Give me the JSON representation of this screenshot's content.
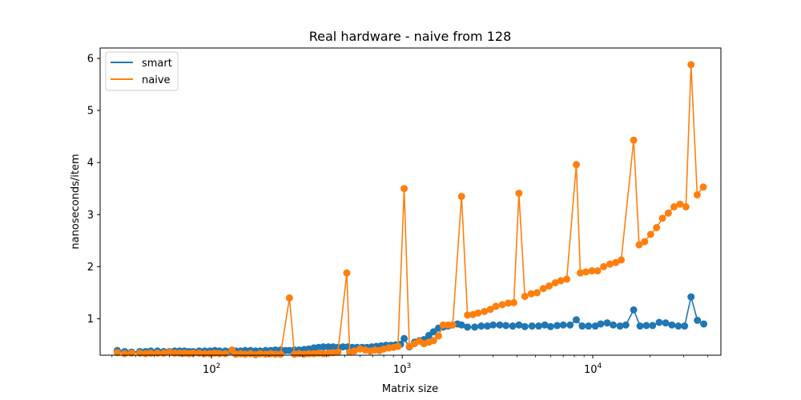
{
  "chart_data": {
    "type": "line",
    "title": "Real hardware - naive from 128",
    "xlabel": "Matrix size",
    "ylabel": "nanoseconds/item",
    "xscale": "log",
    "xlim": [
      26,
      47000
    ],
    "ylim": [
      0.3,
      6.2
    ],
    "xticks": [
      100,
      1000,
      10000
    ],
    "xtick_labels": [
      {
        "base": "10",
        "exp": "2"
      },
      {
        "base": "10",
        "exp": "3"
      },
      {
        "base": "10",
        "exp": "4"
      }
    ],
    "yticks": [
      1,
      2,
      3,
      4,
      5,
      6
    ],
    "ytick_labels": [
      "1",
      "2",
      "3",
      "4",
      "5",
      "6"
    ],
    "legend_position": "top-left",
    "grid": false,
    "series": [
      {
        "name": "smart",
        "color": "#1f77b4",
        "x": [
          32,
          35,
          38,
          42,
          45,
          48,
          52,
          56,
          60,
          64,
          68,
          72,
          76,
          80,
          86,
          92,
          98,
          104,
          110,
          118,
          126,
          134,
          142,
          150,
          160,
          170,
          180,
          192,
          204,
          216,
          230,
          244,
          256,
          272,
          288,
          306,
          324,
          344,
          364,
          386,
          410,
          434,
          460,
          488,
          518,
          548,
          580,
          616,
          652,
          692,
          732,
          776,
          822,
          872,
          924,
          980,
          1024,
          1090,
          1160,
          1230,
          1300,
          1380,
          1460,
          1550,
          1640,
          1740,
          1840,
          1950,
          2048,
          2200,
          2400,
          2600,
          2800,
          3000,
          3250,
          3500,
          3800,
          4096,
          4400,
          4800,
          5200,
          5600,
          6000,
          6500,
          7000,
          7600,
          8192,
          8800,
          9500,
          10300,
          11000,
          11900,
          12800,
          13900,
          14900,
          16384,
          17700,
          19100,
          20600,
          22300,
          24100,
          26000,
          28100,
          30300,
          32768,
          35400,
          38200
        ],
        "values": [
          0.39,
          0.37,
          0.36,
          0.37,
          0.37,
          0.38,
          0.38,
          0.37,
          0.37,
          0.38,
          0.38,
          0.38,
          0.37,
          0.37,
          0.38,
          0.38,
          0.38,
          0.39,
          0.38,
          0.38,
          0.38,
          0.38,
          0.38,
          0.39,
          0.39,
          0.38,
          0.38,
          0.39,
          0.39,
          0.4,
          0.4,
          0.39,
          0.39,
          0.4,
          0.4,
          0.41,
          0.42,
          0.44,
          0.45,
          0.46,
          0.46,
          0.46,
          0.45,
          0.46,
          0.46,
          0.45,
          0.45,
          0.45,
          0.45,
          0.46,
          0.47,
          0.48,
          0.49,
          0.49,
          0.5,
          0.51,
          0.62,
          0.46,
          0.55,
          0.58,
          0.6,
          0.68,
          0.75,
          0.82,
          0.84,
          0.86,
          0.88,
          0.9,
          0.88,
          0.84,
          0.84,
          0.86,
          0.86,
          0.88,
          0.88,
          0.87,
          0.86,
          0.88,
          0.85,
          0.86,
          0.86,
          0.88,
          0.85,
          0.87,
          0.88,
          0.88,
          0.98,
          0.86,
          0.86,
          0.86,
          0.9,
          0.92,
          0.88,
          0.86,
          0.88,
          1.17,
          0.86,
          0.87,
          0.87,
          0.93,
          0.92,
          0.88,
          0.86,
          0.86,
          1.42,
          0.97,
          0.9
        ]
      },
      {
        "name": "naive",
        "color": "#ff7f0e",
        "x": [
          32,
          35,
          38,
          42,
          45,
          48,
          52,
          56,
          60,
          64,
          68,
          72,
          76,
          80,
          86,
          92,
          98,
          104,
          110,
          118,
          128,
          134,
          142,
          150,
          160,
          170,
          180,
          192,
          204,
          216,
          230,
          256,
          272,
          288,
          306,
          324,
          344,
          364,
          386,
          410,
          434,
          460,
          512,
          530,
          560,
          600,
          640,
          680,
          720,
          760,
          800,
          850,
          900,
          950,
          1024,
          1090,
          1160,
          1230,
          1300,
          1380,
          1460,
          1550,
          1640,
          1740,
          1840,
          2048,
          2200,
          2350,
          2500,
          2700,
          2900,
          3100,
          3350,
          3600,
          3850,
          4096,
          4400,
          4750,
          5100,
          5500,
          5900,
          6350,
          6800,
          7300,
          8192,
          8600,
          9200,
          9900,
          10600,
          11400,
          12300,
          13200,
          14100,
          16384,
          17500,
          18700,
          20100,
          21600,
          23200,
          24900,
          26700,
          28700,
          30800,
          32768,
          35300,
          38000
        ],
        "values": [
          0.35,
          0.33,
          0.34,
          0.34,
          0.33,
          0.34,
          0.34,
          0.34,
          0.36,
          0.34,
          0.34,
          0.34,
          0.33,
          0.34,
          0.34,
          0.33,
          0.33,
          0.34,
          0.33,
          0.33,
          0.4,
          0.32,
          0.33,
          0.32,
          0.33,
          0.31,
          0.33,
          0.32,
          0.33,
          0.32,
          0.32,
          1.4,
          0.32,
          0.33,
          0.32,
          0.33,
          0.33,
          0.34,
          0.33,
          0.34,
          0.35,
          0.36,
          1.88,
          0.36,
          0.38,
          0.42,
          0.4,
          0.38,
          0.4,
          0.39,
          0.42,
          0.44,
          0.45,
          0.47,
          3.5,
          0.47,
          0.52,
          0.57,
          0.52,
          0.55,
          0.58,
          0.67,
          0.88,
          0.88,
          0.88,
          3.35,
          1.07,
          1.08,
          1.11,
          1.14,
          1.18,
          1.24,
          1.27,
          1.3,
          1.31,
          3.41,
          1.43,
          1.48,
          1.5,
          1.58,
          1.63,
          1.69,
          1.73,
          1.76,
          3.96,
          1.88,
          1.9,
          1.92,
          1.92,
          2.0,
          2.05,
          2.08,
          2.13,
          4.43,
          2.42,
          2.48,
          2.62,
          2.75,
          2.93,
          3.03,
          3.15,
          3.2,
          3.15,
          5.88,
          3.38,
          3.53
        ]
      }
    ]
  }
}
